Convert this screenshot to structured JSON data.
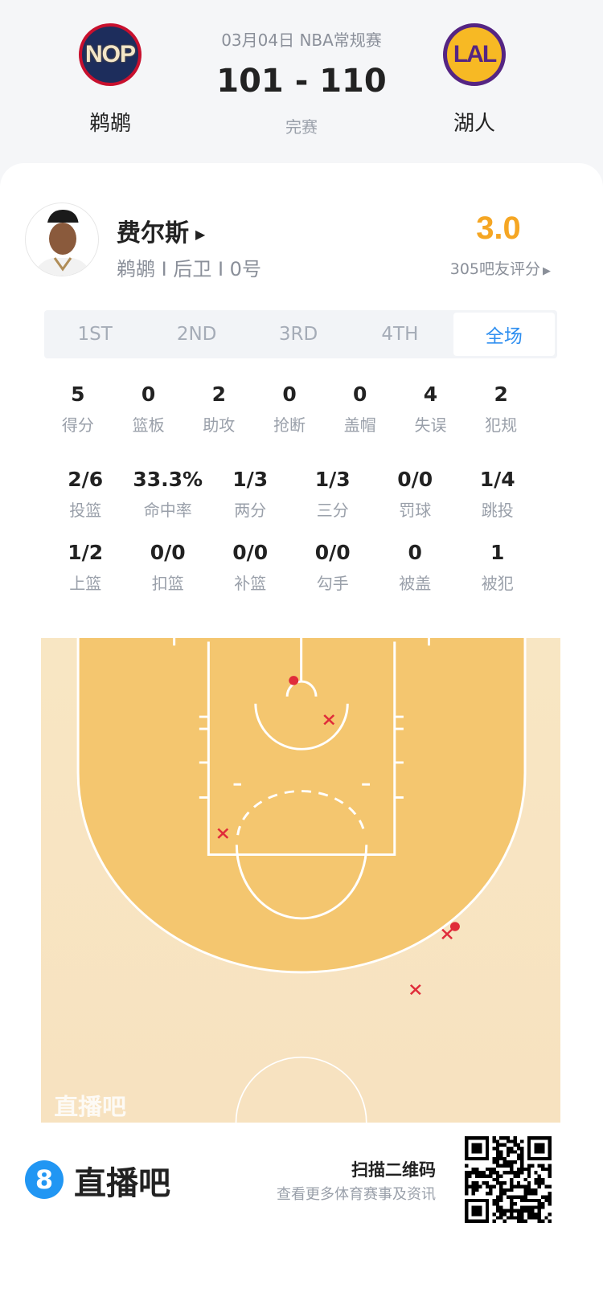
{
  "match": {
    "date_league": "03月04日 NBA常规赛",
    "score": "101 - 110",
    "status": "完赛",
    "home": {
      "abbr": "NOP",
      "name": "鹈鹕"
    },
    "away": {
      "abbr": "LAL",
      "name": "湖人"
    }
  },
  "player": {
    "name": "费尔斯",
    "info": "鹈鹕 I 后卫 I 0号",
    "rating": "3.0",
    "rating_count": "305吧友评分",
    "rating_color": "#f5a623"
  },
  "tabs": [
    {
      "label": "1ST",
      "selected": false
    },
    {
      "label": "2ND",
      "selected": false
    },
    {
      "label": "3RD",
      "selected": false
    },
    {
      "label": "4TH",
      "selected": false
    },
    {
      "label": "全场",
      "selected": true
    }
  ],
  "stats_row1": [
    {
      "value": "5",
      "label": "得分"
    },
    {
      "value": "0",
      "label": "篮板"
    },
    {
      "value": "2",
      "label": "助攻"
    },
    {
      "value": "0",
      "label": "抢断"
    },
    {
      "value": "0",
      "label": "盖帽"
    },
    {
      "value": "4",
      "label": "失误"
    },
    {
      "value": "2",
      "label": "犯规"
    }
  ],
  "stats_row2": [
    {
      "value": "2/6",
      "label": "投篮"
    },
    {
      "value": "33.3%",
      "label": "命中率"
    },
    {
      "value": "1/3",
      "label": "两分"
    },
    {
      "value": "1/3",
      "label": "三分"
    },
    {
      "value": "0/0",
      "label": "罚球"
    },
    {
      "value": "1/4",
      "label": "跳投"
    }
  ],
  "stats_row3": [
    {
      "value": "1/2",
      "label": "上篮"
    },
    {
      "value": "0/0",
      "label": "扣篮"
    },
    {
      "value": "0/0",
      "label": "补篮"
    },
    {
      "value": "0/0",
      "label": "勾手"
    },
    {
      "value": "0",
      "label": "被盖"
    },
    {
      "value": "1",
      "label": "被犯"
    }
  ],
  "shot_chart": {
    "watermark": "直播吧",
    "made_color": "#e02c3a",
    "shots": [
      {
        "result": "made",
        "zone": "rim"
      },
      {
        "result": "made",
        "zone": "right-wing-three"
      },
      {
        "result": "missed",
        "zone": "paint-right"
      },
      {
        "result": "missed",
        "zone": "left-elbow"
      },
      {
        "result": "missed",
        "zone": "right-wing-three"
      },
      {
        "result": "missed",
        "zone": "right-deep-three"
      }
    ]
  },
  "footer": {
    "logo_glyph": "8",
    "brand": "直播吧",
    "scan_title": "扫描二维码",
    "scan_sub": "查看更多体育赛事及资讯",
    "accent": "#2196f3"
  }
}
